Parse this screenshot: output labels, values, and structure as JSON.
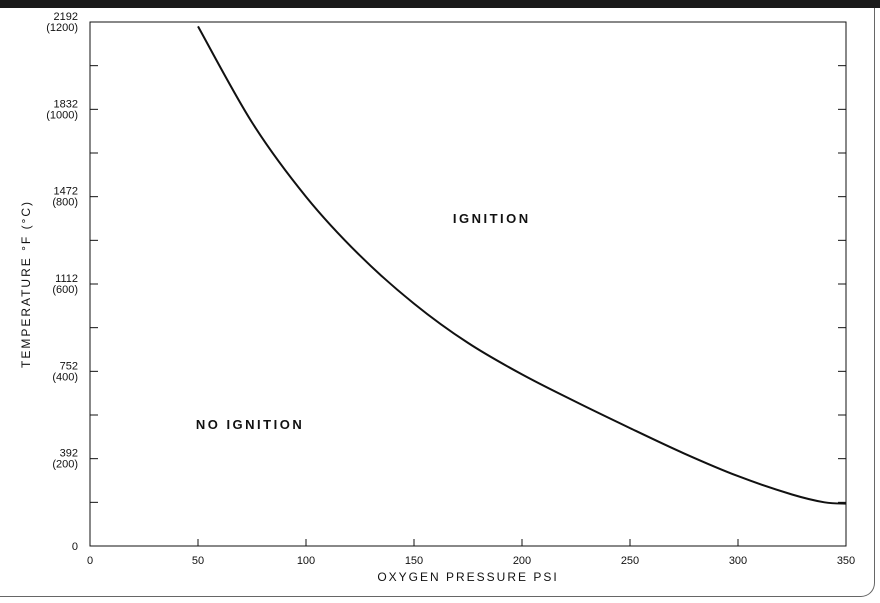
{
  "chart_data": {
    "type": "line",
    "xlabel": "OXYGEN PRESSURE PSI",
    "ylabel": "TEMPERATURE °F (°C)",
    "xlim": [
      0,
      350
    ],
    "ylim": [
      0,
      1200
    ],
    "x_ticks": [
      {
        "value": 0,
        "label": "0"
      },
      {
        "value": 50,
        "label": "50"
      },
      {
        "value": 100,
        "label": "100"
      },
      {
        "value": 150,
        "label": "150"
      },
      {
        "value": 200,
        "label": "200"
      },
      {
        "value": 250,
        "label": "250"
      },
      {
        "value": 300,
        "label": "300"
      },
      {
        "value": 350,
        "label": "350"
      }
    ],
    "y_ticks": [
      {
        "value": 0,
        "label": "0",
        "sub": ""
      },
      {
        "value": 200,
        "label": "392",
        "sub": "(200)"
      },
      {
        "value": 400,
        "label": "752",
        "sub": "(400)"
      },
      {
        "value": 600,
        "label": "1112",
        "sub": "(600)"
      },
      {
        "value": 800,
        "label": "1472",
        "sub": "(800)"
      },
      {
        "value": 1000,
        "label": "1832",
        "sub": "(1000)"
      },
      {
        "value": 1200,
        "label": "2192",
        "sub": "(1200)"
      }
    ],
    "y_minor_ticks": [
      100,
      300,
      500,
      700,
      900,
      1100
    ],
    "series": [
      {
        "x": [
          50,
          75,
          100,
          125,
          150,
          175,
          200,
          225,
          250,
          275,
          300,
          325,
          340,
          350
        ],
        "y": [
          1190,
          970,
          800,
          665,
          555,
          465,
          393,
          330,
          270,
          212,
          160,
          118,
          100,
          97
        ]
      }
    ],
    "annotations": [
      {
        "text": "IGNITION",
        "x": 168,
        "y": 740
      },
      {
        "text": "NO IGNITION",
        "x": 49,
        "y": 268
      }
    ],
    "grid": false
  },
  "colors": {
    "line": "#111111",
    "background": "#ffffff",
    "frame": "#1a1a1a"
  }
}
